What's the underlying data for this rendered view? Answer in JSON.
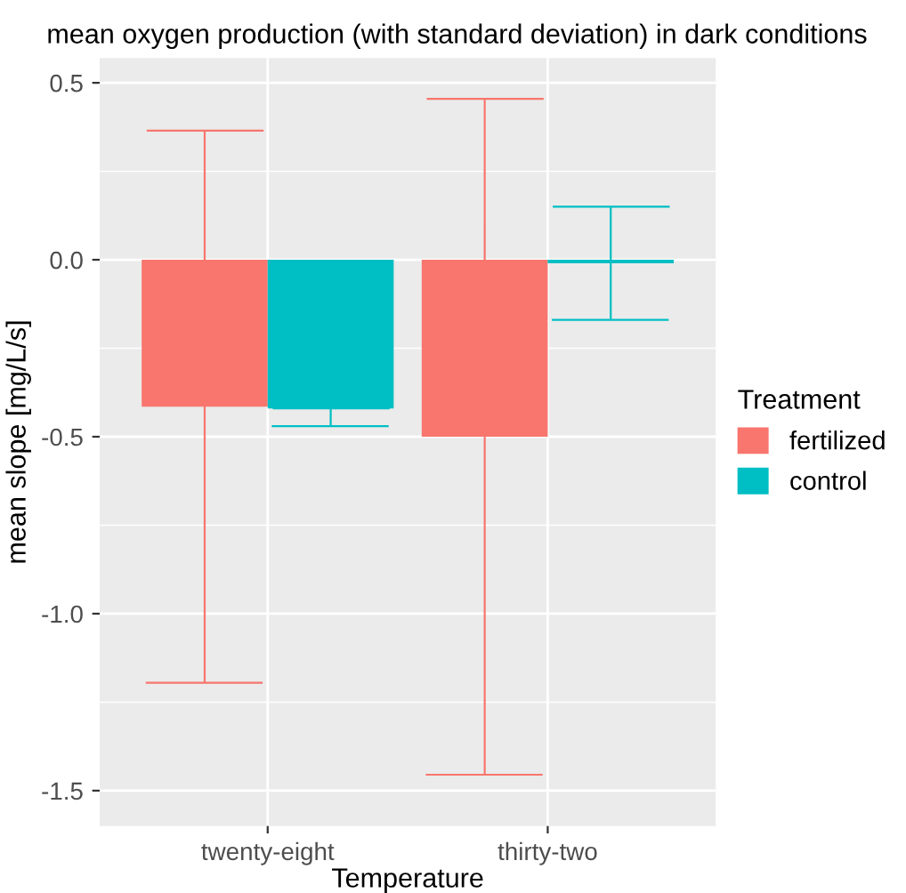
{
  "chart_data": {
    "type": "bar",
    "title": "mean oxygen production (with standard deviation) in dark conditions",
    "xlabel": "Temperature",
    "ylabel": "mean slope [mg/L/s]",
    "legend_title": "Treatment",
    "categories": [
      "twenty-eight",
      "thirty-two"
    ],
    "series": [
      {
        "name": "fertilized",
        "color": "#f8766d",
        "values": [
          -0.415,
          -0.5
        ],
        "errors": [
          0.78,
          0.955
        ]
      },
      {
        "name": "control",
        "color": "#00bfc4",
        "values": [
          -0.42,
          -0.01
        ],
        "errors": [
          [
            -0.47,
            -0.42
          ],
          0.16
        ]
      }
    ],
    "ylim": [
      -1.6,
      0.57
    ],
    "yticks": [
      0.5,
      {
        "value": 0,
        "label": "0.0"
      },
      {
        "value": -0.5,
        "label": "-0.5"
      },
      {
        "value": -1,
        "label": "-1.0"
      },
      {
        "value": -1.5,
        "label": "-1.5"
      }
    ],
    "grid": true,
    "legend": "right"
  }
}
